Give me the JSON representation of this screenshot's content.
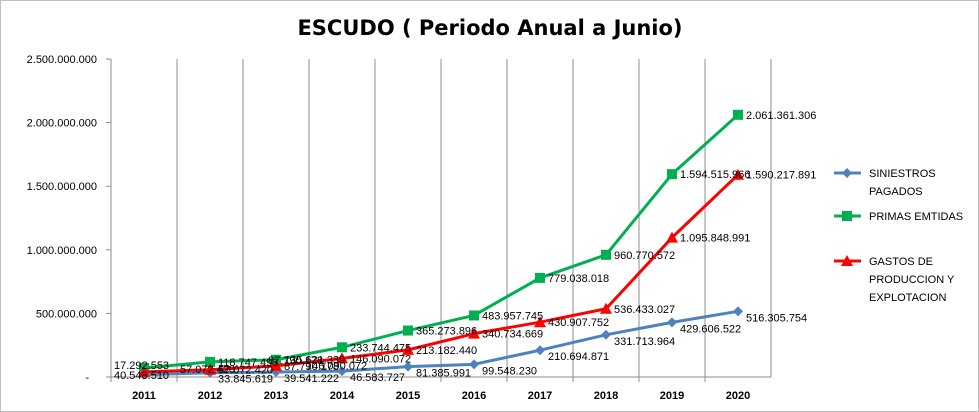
{
  "chart_data": {
    "type": "line",
    "title": "ESCUDO ( Periodo Anual a Junio)",
    "xlabel": "",
    "ylabel": "",
    "categories": [
      "2011",
      "2012",
      "2013",
      "2014",
      "2015",
      "2016",
      "2017",
      "2018",
      "2019",
      "2020"
    ],
    "ylim": [
      0,
      2500000000
    ],
    "yticks": [
      "-",
      "500.000.000",
      "1.000.000.000",
      "1.500.000.000",
      "2.000.000.000",
      "2.500.000.000"
    ],
    "grid": "vertical",
    "legend": "right",
    "series": [
      {
        "name": "SINIESTROS PAGADOS",
        "color": "#4f81bd",
        "marker": "diamond",
        "values": [
          17292553,
          33845619,
          39541222,
          46583727,
          81385991,
          99548230,
          210694871,
          331713964,
          429606522,
          516305754
        ],
        "labels": [
          "17.292.553",
          "33.845.619",
          "39.541.222",
          "46.583.727",
          "81.385.991",
          "99.548.230",
          "210.694.871",
          "331.713.964",
          "429.606.522",
          "516.305.754"
        ]
      },
      {
        "name": "PRIMAS EMTIDAS",
        "color": "#00b050",
        "marker": "square",
        "values": [
          70960000,
          118747493,
          135621339,
          233744475,
          365273896,
          483957745,
          779038018,
          960770572,
          1594515966,
          2061361306
        ],
        "labels": [
          "",
          "118.747.493",
          "135.621.339",
          "233.744.475",
          "365.273.896",
          "483.957.745",
          "779.038.018",
          "960.770.572",
          "1.594.515.966",
          "2.061.361.306"
        ]
      },
      {
        "name": "GASTOS DE PRODUCCION Y EXPLOTACION",
        "color": "#ff0000",
        "marker": "triangle",
        "values": [
          40548510,
          57072420,
          87790178,
          146090072,
          213182440,
          340734669,
          430907752,
          536433027,
          1095848991,
          1590217891
        ],
        "labels": [
          "40.548.510",
          "57.072.420",
          "87.790.178",
          "146.090.072",
          "213.182.440",
          "340.734.669",
          "430.907.752",
          "536.433.027",
          "1.095.848.991",
          "1.590.217.891"
        ]
      }
    ],
    "legend_lines": [
      [
        "SINIESTROS",
        "PAGADOS"
      ],
      [
        "PRIMAS EMTIDAS"
      ],
      [
        "GASTOS DE",
        "PRODUCCION Y",
        "EXPLOTACION"
      ]
    ],
    "extra_labels": [
      "87.790.178",
      "57.072.420",
      "146.090.072"
    ]
  }
}
